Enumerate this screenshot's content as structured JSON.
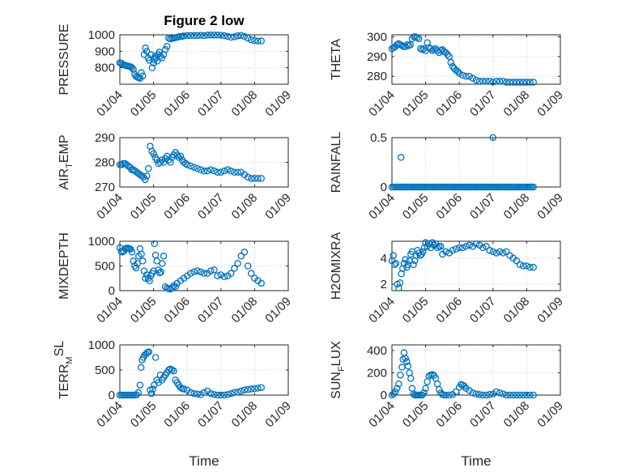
{
  "figure": {
    "title": "Figure 2 low",
    "marker_color": "#0072BD"
  },
  "chart_data": [
    {
      "type": "scatter",
      "name": "pressure",
      "title": "Figure 2 low",
      "ylabel": "PRESSURE",
      "ylim": [
        700,
        1000
      ],
      "yticks": [
        800,
        900,
        1000
      ],
      "xticks": [
        "01/04",
        "01/05",
        "01/06",
        "01/07",
        "01/08",
        "01/09"
      ],
      "xlabel": "",
      "grid": true,
      "x": [
        0.0,
        0.04,
        0.08,
        0.12,
        0.16,
        0.2,
        0.24,
        0.28,
        0.32,
        0.36,
        0.4,
        0.44,
        0.48,
        0.52,
        0.56,
        0.6,
        0.64,
        0.68,
        0.72,
        0.76,
        0.8,
        0.84,
        0.88,
        0.92,
        0.96,
        1.0,
        1.02,
        1.05,
        1.08,
        1.11,
        1.14,
        1.17,
        1.2,
        1.25,
        1.3,
        1.35,
        1.4,
        1.45,
        1.5,
        1.55,
        1.6,
        1.65,
        1.7,
        1.75,
        1.8,
        1.85,
        1.9,
        2.0,
        2.1,
        2.2,
        2.3,
        2.4,
        2.5,
        2.6,
        2.7,
        2.8,
        2.9,
        3.0,
        3.1,
        3.2,
        3.3,
        3.4,
        3.5,
        3.6,
        3.7,
        3.8,
        3.9,
        4.0,
        4.1,
        4.2
      ],
      "y": [
        830,
        828,
        820,
        818,
        814,
        812,
        810,
        808,
        806,
        800,
        790,
        760,
        748,
        742,
        740,
        735,
        770,
        750,
        880,
        920,
        900,
        860,
        845,
        880,
        800,
        830,
        850,
        870,
        860,
        840,
        880,
        895,
        870,
        860,
        880,
        910,
        930,
        980,
        975,
        978,
        980,
        982,
        985,
        988,
        990,
        990,
        993,
        995,
        996,
        995,
        996,
        997,
        995,
        998,
        999,
        999,
        998,
        997,
        995,
        990,
        985,
        988,
        994,
        996,
        990,
        980,
        970,
        965,
        962,
        963
      ]
    },
    {
      "type": "scatter",
      "name": "theta",
      "ylabel": "THETA",
      "ylim": [
        276,
        301
      ],
      "yticks": [
        280,
        290,
        300
      ],
      "xticks": [
        "01/04",
        "01/05",
        "01/06",
        "01/07",
        "01/08",
        "01/09"
      ],
      "xlabel": "",
      "grid": true,
      "x": [
        0.0,
        0.05,
        0.1,
        0.15,
        0.2,
        0.25,
        0.3,
        0.35,
        0.4,
        0.45,
        0.5,
        0.55,
        0.6,
        0.65,
        0.7,
        0.75,
        0.8,
        0.85,
        0.9,
        0.95,
        1.0,
        1.05,
        1.1,
        1.15,
        1.2,
        1.25,
        1.3,
        1.35,
        1.4,
        1.45,
        1.5,
        1.55,
        1.6,
        1.65,
        1.7,
        1.75,
        1.8,
        1.85,
        1.9,
        1.95,
        2.0,
        2.1,
        2.2,
        2.3,
        2.4,
        2.5,
        2.6,
        2.7,
        2.8,
        2.9,
        3.0,
        3.1,
        3.2,
        3.3,
        3.4,
        3.5,
        3.6,
        3.7,
        3.8,
        3.9,
        4.0,
        4.1,
        4.2
      ],
      "y": [
        294,
        294.5,
        295,
        296,
        296.5,
        296,
        295.5,
        295,
        295,
        296,
        295.5,
        296,
        299,
        300,
        300,
        299.5,
        299,
        294,
        293.5,
        294,
        293,
        297,
        294.5,
        294,
        293,
        293.5,
        294,
        293,
        292,
        293,
        293.5,
        292.5,
        292,
        291,
        290,
        287,
        285,
        284,
        283,
        282.5,
        281.5,
        280.5,
        280,
        280,
        279,
        278,
        277.5,
        277.5,
        277.5,
        277.5,
        277,
        277.5,
        277.5,
        277.5,
        277,
        277,
        277,
        277,
        277,
        277,
        277,
        277,
        277
      ]
    },
    {
      "type": "scatter",
      "name": "air-temp",
      "ylabel_base": "AIR",
      "ylabel_sub": "T",
      "ylabel_rest": "EMP",
      "ylim": [
        270,
        290
      ],
      "yticks": [
        270,
        280,
        290
      ],
      "xticks": [
        "01/04",
        "01/05",
        "01/06",
        "01/07",
        "01/08",
        "01/09"
      ],
      "xlabel": "",
      "grid": true,
      "x": [
        0.0,
        0.05,
        0.1,
        0.15,
        0.2,
        0.25,
        0.3,
        0.35,
        0.4,
        0.45,
        0.5,
        0.55,
        0.6,
        0.65,
        0.7,
        0.75,
        0.8,
        0.85,
        0.9,
        0.95,
        1.0,
        1.05,
        1.1,
        1.15,
        1.2,
        1.25,
        1.3,
        1.35,
        1.4,
        1.45,
        1.5,
        1.55,
        1.6,
        1.65,
        1.7,
        1.75,
        1.8,
        1.85,
        1.9,
        1.95,
        2.0,
        2.1,
        2.2,
        2.3,
        2.4,
        2.5,
        2.6,
        2.7,
        2.8,
        2.9,
        3.0,
        3.1,
        3.2,
        3.3,
        3.4,
        3.5,
        3.6,
        3.7,
        3.8,
        3.9,
        4.0,
        4.1,
        4.2
      ],
      "y": [
        279,
        279,
        279.5,
        279.5,
        279,
        278.5,
        278,
        277,
        277,
        276.5,
        276,
        275.5,
        275,
        274.5,
        274,
        273,
        274.5,
        277.5,
        286.5,
        284.5,
        283.5,
        282,
        281,
        279.5,
        280,
        281,
        280,
        281.5,
        282.5,
        281,
        280,
        282,
        283,
        284,
        283,
        282,
        282.5,
        281,
        280,
        279.5,
        279,
        278.5,
        278,
        277.5,
        277,
        276.5,
        276.5,
        277,
        276.5,
        276,
        276,
        276.5,
        277,
        276.5,
        276,
        276,
        276,
        275,
        274,
        273.5,
        273.5,
        273.5,
        273.5
      ]
    },
    {
      "type": "scatter",
      "name": "rainfall",
      "ylabel": "RAINFALL",
      "ylim": [
        0,
        0.5
      ],
      "yticks": [
        0,
        0.5
      ],
      "xticks": [
        "01/04",
        "01/05",
        "01/06",
        "01/07",
        "01/08",
        "01/09"
      ],
      "xlabel": "",
      "grid": true,
      "x": [
        0.0,
        0.05,
        0.1,
        0.15,
        0.2,
        0.25,
        0.3,
        0.35,
        0.4,
        0.45,
        0.5,
        0.55,
        0.6,
        0.65,
        0.7,
        0.75,
        0.8,
        0.85,
        0.9,
        0.95,
        1.0,
        1.05,
        1.1,
        1.15,
        1.2,
        1.25,
        1.3,
        1.35,
        1.4,
        1.45,
        1.5,
        1.55,
        1.6,
        1.65,
        1.7,
        1.75,
        1.8,
        1.85,
        1.9,
        1.95,
        2.0,
        2.05,
        2.1,
        2.15,
        2.2,
        2.25,
        2.3,
        2.35,
        2.4,
        2.45,
        2.5,
        2.55,
        2.6,
        2.65,
        2.7,
        2.75,
        2.8,
        2.85,
        2.9,
        2.95,
        3.0,
        3.05,
        3.1,
        3.15,
        3.2,
        3.25,
        3.3,
        3.35,
        3.4,
        3.45,
        3.5,
        3.55,
        3.6,
        3.65,
        3.7,
        3.75,
        3.8,
        3.85,
        3.9,
        3.95,
        4.0,
        4.05,
        4.1,
        4.15,
        4.2,
        0.27,
        3.0
      ],
      "y": [
        0,
        0,
        0,
        0,
        0,
        0,
        0,
        0,
        0,
        0,
        0,
        0,
        0,
        0,
        0,
        0,
        0,
        0,
        0,
        0,
        0,
        0,
        0,
        0,
        0,
        0,
        0,
        0,
        0,
        0,
        0,
        0,
        0,
        0,
        0,
        0,
        0,
        0,
        0,
        0,
        0,
        0,
        0,
        0,
        0,
        0,
        0,
        0,
        0,
        0,
        0,
        0,
        0,
        0,
        0,
        0,
        0,
        0,
        0,
        0,
        0,
        0,
        0,
        0,
        0,
        0,
        0,
        0,
        0,
        0,
        0,
        0,
        0,
        0,
        0,
        0,
        0,
        0,
        0,
        0,
        0,
        0,
        0,
        0,
        0,
        0.3,
        0.5
      ]
    },
    {
      "type": "scatter",
      "name": "mixdepth",
      "ylabel": "MIXDEPTH",
      "ylim": [
        0,
        1000
      ],
      "yticks": [
        0,
        500,
        1000
      ],
      "xticks": [
        "01/04",
        "01/05",
        "01/06",
        "01/07",
        "01/08",
        "01/09"
      ],
      "xlabel": "",
      "grid": true,
      "x": [
        0.0,
        0.04,
        0.08,
        0.12,
        0.16,
        0.2,
        0.24,
        0.28,
        0.32,
        0.36,
        0.4,
        0.44,
        0.48,
        0.52,
        0.56,
        0.6,
        0.64,
        0.68,
        0.72,
        0.76,
        0.8,
        0.84,
        0.88,
        0.92,
        0.96,
        1.0,
        1.03,
        1.06,
        1.1,
        1.14,
        1.18,
        1.22,
        1.26,
        1.3,
        1.35,
        1.4,
        1.45,
        1.5,
        1.55,
        1.6,
        1.65,
        1.7,
        1.8,
        1.9,
        2.0,
        2.1,
        2.2,
        2.3,
        2.4,
        2.5,
        2.6,
        2.7,
        2.8,
        2.9,
        3.0,
        3.1,
        3.2,
        3.3,
        3.4,
        3.5,
        3.6,
        3.7,
        3.8,
        3.9,
        4.0,
        4.1,
        4.2
      ],
      "y": [
        870,
        800,
        780,
        800,
        850,
        860,
        860,
        850,
        840,
        780,
        600,
        500,
        460,
        550,
        700,
        850,
        740,
        600,
        400,
        250,
        320,
        250,
        200,
        300,
        350,
        400,
        950,
        720,
        600,
        420,
        360,
        380,
        550,
        700,
        80,
        50,
        40,
        30,
        60,
        100,
        80,
        150,
        200,
        250,
        300,
        350,
        380,
        400,
        380,
        350,
        350,
        400,
        420,
        300,
        320,
        280,
        300,
        350,
        450,
        550,
        700,
        780,
        500,
        350,
        250,
        200,
        150
      ]
    },
    {
      "type": "scatter",
      "name": "h2omixra",
      "ylabel": "H2OMIXRA",
      "ylim": [
        1.5,
        5.3
      ],
      "yticks": [
        2,
        4
      ],
      "xticks": [
        "01/04",
        "01/05",
        "01/06",
        "01/07",
        "01/08",
        "01/09"
      ],
      "xlabel": "",
      "grid": true,
      "x": [
        0.0,
        0.04,
        0.08,
        0.12,
        0.16,
        0.2,
        0.24,
        0.28,
        0.32,
        0.36,
        0.4,
        0.44,
        0.48,
        0.52,
        0.56,
        0.6,
        0.64,
        0.68,
        0.72,
        0.76,
        0.8,
        0.84,
        0.88,
        0.92,
        0.96,
        1.0,
        1.05,
        1.1,
        1.15,
        1.2,
        1.25,
        1.3,
        1.35,
        1.4,
        1.45,
        1.5,
        1.6,
        1.7,
        1.8,
        1.9,
        2.0,
        2.1,
        2.2,
        2.3,
        2.4,
        2.5,
        2.6,
        2.7,
        2.8,
        2.9,
        3.0,
        3.1,
        3.2,
        3.3,
        3.4,
        3.5,
        3.6,
        3.7,
        3.8,
        3.9,
        4.0,
        4.1,
        4.2
      ],
      "y": [
        3.8,
        4.2,
        3.5,
        3.6,
        2.0,
        1.7,
        2.1,
        2.8,
        3.2,
        3.6,
        3.9,
        3.3,
        3.5,
        3.8,
        4.3,
        4.5,
        3.5,
        3.8,
        4.2,
        4.6,
        4.4,
        4.2,
        4.3,
        4.5,
        4.8,
        5.2,
        4.9,
        5.1,
        4.8,
        5.2,
        5.0,
        5.1,
        4.8,
        4.9,
        4.9,
        4.3,
        4.5,
        4.4,
        4.6,
        4.7,
        4.8,
        4.8,
        4.9,
        5.0,
        4.9,
        5.1,
        5.0,
        4.8,
        4.9,
        4.6,
        4.5,
        4.4,
        4.5,
        4.4,
        4.5,
        4.2,
        4.0,
        3.8,
        3.5,
        3.4,
        3.4,
        3.3,
        3.3
      ]
    },
    {
      "type": "scatter",
      "name": "terr-msl",
      "ylabel_base": "TERR",
      "ylabel_sub": "M",
      "ylabel_sup": "SL",
      "ylim": [
        0,
        1000
      ],
      "yticks": [
        0,
        500,
        1000
      ],
      "xticks": [
        "01/04",
        "01/05",
        "01/06",
        "01/07",
        "01/08",
        "01/09"
      ],
      "xlabel": "Time",
      "grid": true,
      "x": [
        0.0,
        0.05,
        0.1,
        0.15,
        0.2,
        0.25,
        0.3,
        0.35,
        0.4,
        0.45,
        0.5,
        0.55,
        0.6,
        0.63,
        0.66,
        0.7,
        0.74,
        0.78,
        0.82,
        0.86,
        0.9,
        0.94,
        0.98,
        1.02,
        1.06,
        1.1,
        1.15,
        1.2,
        1.25,
        1.3,
        1.35,
        1.4,
        1.45,
        1.5,
        1.55,
        1.6,
        1.65,
        1.7,
        1.75,
        1.8,
        1.85,
        1.9,
        2.0,
        2.1,
        2.2,
        2.3,
        2.4,
        2.5,
        2.6,
        2.7,
        2.8,
        2.9,
        3.0,
        3.1,
        3.2,
        3.3,
        3.4,
        3.5,
        3.6,
        3.7,
        3.8,
        3.9,
        4.0,
        4.1,
        4.2
      ],
      "y": [
        0,
        0,
        0,
        0,
        0,
        0,
        0,
        0,
        0,
        0,
        5,
        50,
        200,
        550,
        700,
        750,
        800,
        820,
        850,
        860,
        100,
        30,
        120,
        200,
        750,
        300,
        250,
        400,
        300,
        350,
        400,
        450,
        500,
        520,
        500,
        480,
        300,
        250,
        200,
        150,
        130,
        120,
        100,
        50,
        30,
        20,
        10,
        50,
        80,
        30,
        10,
        0,
        0,
        0,
        10,
        30,
        50,
        60,
        80,
        100,
        110,
        120,
        130,
        140,
        150
      ]
    },
    {
      "type": "scatter",
      "name": "sun-flux",
      "ylabel_base": "SUN",
      "ylabel_sub": "F",
      "ylabel_rest": "LUX",
      "ylim": [
        0,
        450
      ],
      "yticks": [
        0,
        200,
        400
      ],
      "xticks": [
        "01/04",
        "01/05",
        "01/06",
        "01/07",
        "01/08",
        "01/09"
      ],
      "xlabel": "Time",
      "grid": true,
      "x": [
        0.0,
        0.05,
        0.1,
        0.15,
        0.2,
        0.25,
        0.3,
        0.33,
        0.36,
        0.4,
        0.44,
        0.48,
        0.52,
        0.56,
        0.6,
        0.64,
        0.68,
        0.72,
        0.76,
        0.8,
        0.85,
        0.9,
        0.95,
        1.0,
        1.05,
        1.1,
        1.15,
        1.2,
        1.25,
        1.3,
        1.35,
        1.4,
        1.45,
        1.5,
        1.55,
        1.6,
        1.7,
        1.8,
        1.9,
        2.0,
        2.05,
        2.1,
        2.15,
        2.2,
        2.3,
        2.4,
        2.5,
        2.6,
        2.7,
        2.8,
        2.9,
        3.0,
        3.1,
        3.2,
        3.3,
        3.4,
        3.5,
        3.6,
        3.7,
        3.8,
        3.9,
        4.0,
        4.1,
        4.2
      ],
      "y": [
        0,
        10,
        30,
        60,
        100,
        180,
        250,
        320,
        380,
        330,
        300,
        260,
        200,
        150,
        60,
        10,
        0,
        0,
        0,
        0,
        0,
        0,
        20,
        60,
        120,
        170,
        180,
        185,
        175,
        150,
        100,
        50,
        20,
        5,
        0,
        0,
        0,
        5,
        30,
        70,
        95,
        90,
        80,
        60,
        40,
        20,
        10,
        5,
        0,
        0,
        5,
        10,
        30,
        20,
        10,
        0,
        0,
        0,
        0,
        0,
        0,
        0,
        0,
        0
      ]
    }
  ]
}
